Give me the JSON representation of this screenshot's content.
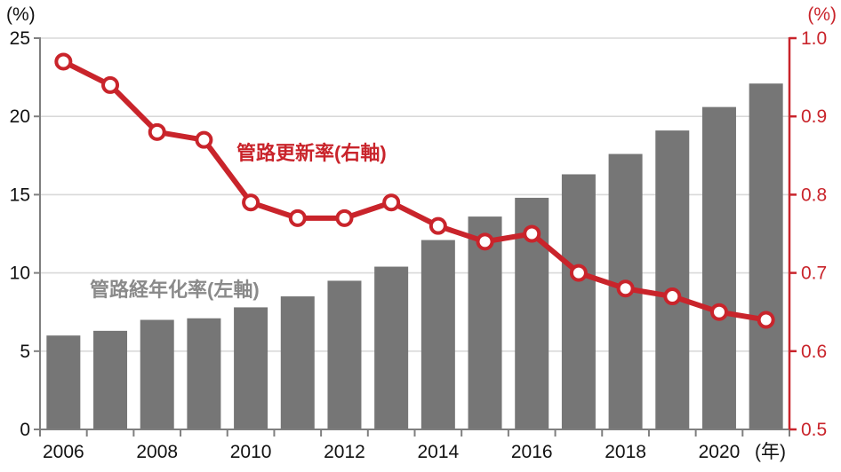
{
  "chart_data": {
    "type": "bar",
    "subtype": "bar-and-line-dual-axis",
    "categories": [
      2006,
      2007,
      2008,
      2009,
      2010,
      2011,
      2012,
      2013,
      2014,
      2015,
      2016,
      2017,
      2018,
      2019,
      2020,
      2021
    ],
    "series": [
      {
        "name": "管路経年化率(左軸)",
        "type": "bar",
        "axis": "left",
        "color": "#767676",
        "values": [
          6.0,
          6.3,
          7.0,
          7.1,
          7.8,
          8.5,
          9.5,
          10.4,
          12.1,
          13.6,
          14.8,
          16.3,
          17.6,
          19.1,
          20.6,
          22.1
        ]
      },
      {
        "name": "管路更新率(右軸)",
        "type": "line",
        "axis": "right",
        "color": "#c9242b",
        "marker": "open-circle",
        "values": [
          0.97,
          0.94,
          0.88,
          0.87,
          0.79,
          0.77,
          0.77,
          0.79,
          0.76,
          0.74,
          0.75,
          0.7,
          0.68,
          0.67,
          0.65,
          0.64
        ]
      }
    ],
    "left_axis": {
      "unit": "(%)",
      "min": 0,
      "max": 25,
      "tick_labels": [
        "0",
        "5",
        "10",
        "15",
        "20",
        "25"
      ],
      "tick_values": [
        0,
        5,
        10,
        15,
        20,
        25
      ],
      "color": "#111111",
      "line_color": "#7f7f7f"
    },
    "right_axis": {
      "unit": "(%)",
      "min": 0.5,
      "max": 1.0,
      "tick_labels": [
        "0.5",
        "0.6",
        "0.7",
        "0.8",
        "0.9",
        "1.0"
      ],
      "tick_values": [
        0.5,
        0.6,
        0.7,
        0.8,
        0.9,
        1.0
      ],
      "color": "#c9242b",
      "line_color": "#c9242b"
    },
    "x_axis": {
      "unit": "(年)",
      "visible_labels": [
        "2006",
        "2008",
        "2010",
        "2012",
        "2014",
        "2016",
        "2018",
        "2020"
      ],
      "label_indices": [
        0,
        2,
        4,
        6,
        8,
        10,
        12,
        14
      ],
      "line_color": "#7f7f7f"
    },
    "annotations": [
      {
        "id": "line-label",
        "text": "管路更新率(右軸)",
        "color": "#c9242b"
      },
      {
        "id": "bar-label",
        "text": "管路経年化率(左軸)",
        "color": "#8a8a8a"
      }
    ],
    "grid": true,
    "grid_color": "#d9d9d9",
    "background": "#ffffff",
    "legend_position": "inline-annotations"
  }
}
